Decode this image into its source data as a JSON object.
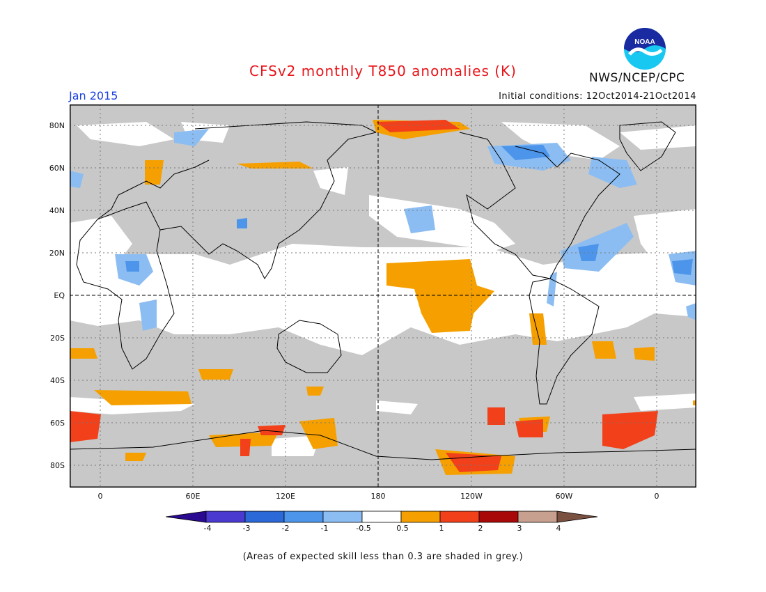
{
  "title": "CFSv2 monthly T850 anomalies (K)",
  "agency": "NWS/NCEP/CPC",
  "logo_text": "NOAA",
  "valid_month": "Jan 2015",
  "initial_conditions": "Initial conditions: 12Oct2014-21Oct2014",
  "footnote": "(Areas of expected skill less than 0.3 are shaded in grey.)",
  "lat_labels": [
    "80N",
    "60N",
    "40N",
    "20N",
    "EQ",
    "20S",
    "40S",
    "60S",
    "80S"
  ],
  "lon_labels": [
    "0",
    "60E",
    "120E",
    "180",
    "120W",
    "60W",
    "0"
  ],
  "colorbar": {
    "labels": [
      "-4",
      "-3",
      "-2",
      "-1",
      "-0.5",
      "0.5",
      "1",
      "2",
      "3",
      "4"
    ],
    "colors": [
      "#2a0a90",
      "#4a3ad0",
      "#2b68d8",
      "#4c95ea",
      "#8cbdf2",
      "#ffffff",
      "#f5a000",
      "#f2401a",
      "#a80808",
      "#c8a090",
      "#7a5040"
    ]
  },
  "colors": {
    "grey_low_skill": "#c8c8c8",
    "ocean_white": "#ffffff",
    "coast": "#000000"
  }
}
